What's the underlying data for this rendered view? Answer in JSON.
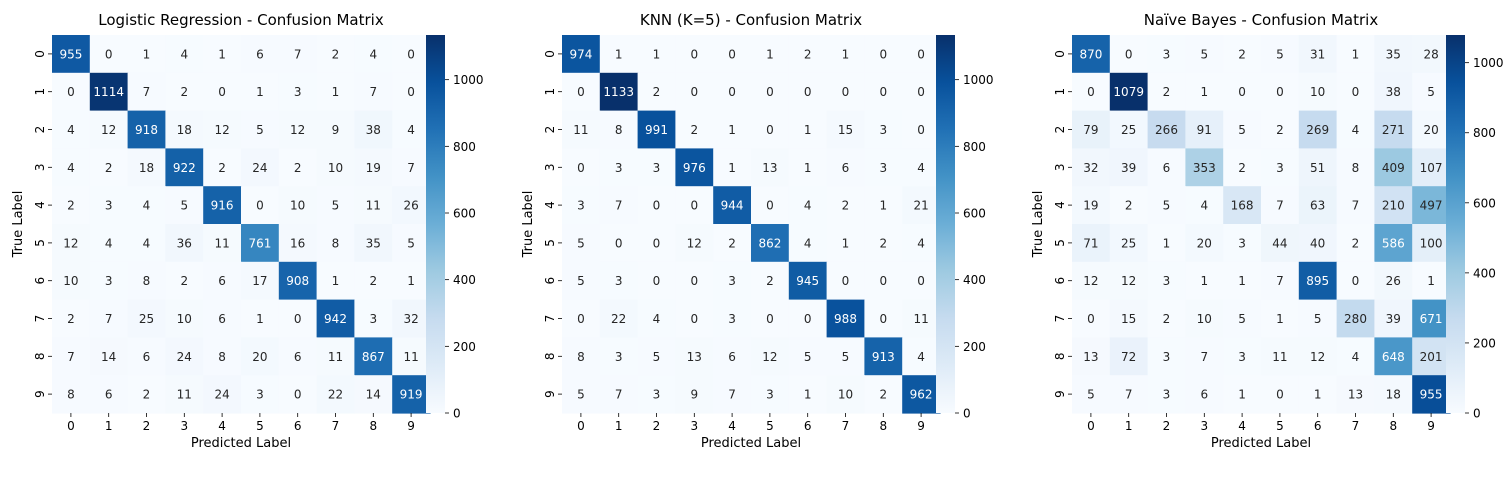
{
  "chart_data": [
    {
      "type": "heatmap",
      "title": "Logistic Regression - Confusion Matrix",
      "xlabel": "Predicted Label",
      "ylabel": "True Label",
      "x_categories": [
        "0",
        "1",
        "2",
        "3",
        "4",
        "5",
        "6",
        "7",
        "8",
        "9"
      ],
      "y_categories": [
        "0",
        "1",
        "2",
        "3",
        "4",
        "5",
        "6",
        "7",
        "8",
        "9"
      ],
      "values": [
        [
          955,
          0,
          1,
          4,
          1,
          6,
          7,
          2,
          4,
          0
        ],
        [
          0,
          1114,
          7,
          2,
          0,
          1,
          3,
          1,
          7,
          0
        ],
        [
          4,
          12,
          918,
          18,
          12,
          5,
          12,
          9,
          38,
          4
        ],
        [
          4,
          2,
          18,
          922,
          2,
          24,
          2,
          10,
          19,
          7
        ],
        [
          2,
          3,
          4,
          5,
          916,
          0,
          10,
          5,
          11,
          26
        ],
        [
          12,
          4,
          4,
          36,
          11,
          761,
          16,
          8,
          35,
          5
        ],
        [
          10,
          3,
          8,
          2,
          6,
          17,
          908,
          1,
          2,
          1
        ],
        [
          2,
          7,
          25,
          10,
          6,
          1,
          0,
          942,
          3,
          32
        ],
        [
          7,
          14,
          6,
          24,
          8,
          20,
          6,
          11,
          867,
          11
        ],
        [
          8,
          6,
          2,
          11,
          24,
          3,
          0,
          22,
          14,
          919
        ]
      ],
      "colorbar": {
        "range": [
          0,
          1134
        ],
        "ticks": [
          0,
          200,
          400,
          600,
          800,
          1000
        ],
        "colormap": "Blues"
      }
    },
    {
      "type": "heatmap",
      "title": "KNN (K=5) - Confusion Matrix",
      "xlabel": "Predicted Label",
      "ylabel": "True Label",
      "x_categories": [
        "0",
        "1",
        "2",
        "3",
        "4",
        "5",
        "6",
        "7",
        "8",
        "9"
      ],
      "y_categories": [
        "0",
        "1",
        "2",
        "3",
        "4",
        "5",
        "6",
        "7",
        "8",
        "9"
      ],
      "values": [
        [
          974,
          1,
          1,
          0,
          0,
          1,
          2,
          1,
          0,
          0
        ],
        [
          0,
          1133,
          2,
          0,
          0,
          0,
          0,
          0,
          0,
          0
        ],
        [
          11,
          8,
          991,
          2,
          1,
          0,
          1,
          15,
          3,
          0
        ],
        [
          0,
          3,
          3,
          976,
          1,
          13,
          1,
          6,
          3,
          4
        ],
        [
          3,
          7,
          0,
          0,
          944,
          0,
          4,
          2,
          1,
          21
        ],
        [
          5,
          0,
          0,
          12,
          2,
          862,
          4,
          1,
          2,
          4
        ],
        [
          5,
          3,
          0,
          0,
          3,
          2,
          945,
          0,
          0,
          0
        ],
        [
          0,
          22,
          4,
          0,
          3,
          0,
          0,
          988,
          0,
          11
        ],
        [
          8,
          3,
          5,
          13,
          6,
          12,
          5,
          5,
          913,
          4
        ],
        [
          5,
          7,
          3,
          9,
          7,
          3,
          1,
          10,
          2,
          962
        ]
      ],
      "colorbar": {
        "range": [
          0,
          1134
        ],
        "ticks": [
          0,
          200,
          400,
          600,
          800,
          1000
        ],
        "colormap": "Blues"
      }
    },
    {
      "type": "heatmap",
      "title": "Naïve Bayes - Confusion Matrix",
      "xlabel": "Predicted Label",
      "ylabel": "True Label",
      "x_categories": [
        "0",
        "1",
        "2",
        "3",
        "4",
        "5",
        "6",
        "7",
        "8",
        "9"
      ],
      "y_categories": [
        "0",
        "1",
        "2",
        "3",
        "4",
        "5",
        "6",
        "7",
        "8",
        "9"
      ],
      "values": [
        [
          870,
          0,
          3,
          5,
          2,
          5,
          31,
          1,
          35,
          28
        ],
        [
          0,
          1079,
          2,
          1,
          0,
          0,
          10,
          0,
          38,
          5
        ],
        [
          79,
          25,
          266,
          91,
          5,
          2,
          269,
          4,
          271,
          20
        ],
        [
          32,
          39,
          6,
          353,
          2,
          3,
          51,
          8,
          409,
          107
        ],
        [
          19,
          2,
          5,
          4,
          168,
          7,
          63,
          7,
          210,
          497
        ],
        [
          71,
          25,
          1,
          20,
          3,
          44,
          40,
          2,
          586,
          100
        ],
        [
          12,
          12,
          3,
          1,
          1,
          7,
          895,
          0,
          26,
          1
        ],
        [
          0,
          15,
          2,
          10,
          5,
          1,
          5,
          280,
          39,
          671
        ],
        [
          13,
          72,
          3,
          7,
          3,
          11,
          12,
          4,
          648,
          201
        ],
        [
          5,
          7,
          3,
          6,
          1,
          0,
          1,
          13,
          18,
          955
        ]
      ],
      "colorbar": {
        "range": [
          0,
          1079
        ],
        "ticks": [
          0,
          200,
          400,
          600,
          800,
          1000
        ],
        "colormap": "Blues"
      }
    }
  ]
}
